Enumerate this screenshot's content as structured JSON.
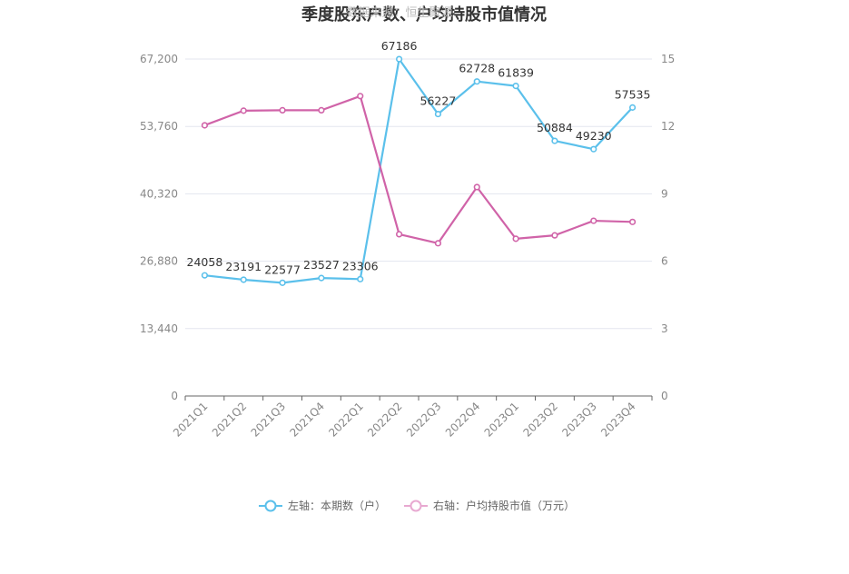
{
  "chart_data": {
    "type": "line",
    "title": "季度股东户数、户均持股市值情况",
    "watermark": "数据来源：恒生聚源",
    "categories": [
      "2021Q1",
      "2021Q2",
      "2021Q3",
      "2021Q4",
      "2022Q1",
      "2022Q2",
      "2022Q3",
      "2022Q4",
      "2023Q1",
      "2023Q2",
      "2023Q3",
      "2023Q4"
    ],
    "left_axis": {
      "ylim": [
        0,
        67200
      ],
      "ticks": [
        "0",
        "13,440",
        "26,880",
        "40,320",
        "53,760",
        "67,200"
      ],
      "tick_values": [
        0,
        13440,
        26880,
        40320,
        53760,
        67200
      ]
    },
    "right_axis": {
      "ylim": [
        0,
        15
      ],
      "ticks": [
        "0",
        "3",
        "6",
        "9",
        "12",
        "15"
      ],
      "tick_values": [
        0,
        3,
        6,
        9,
        12,
        15
      ]
    },
    "series": [
      {
        "name": "左轴：本期数（户）",
        "axis": "left",
        "color": "#5bc0eb",
        "values": [
          24058,
          23191,
          22577,
          23527,
          23306,
          67186,
          56227,
          62728,
          61839,
          50884,
          49230,
          57535
        ],
        "labels": [
          "24058",
          "23191",
          "22577",
          "23527",
          "23306",
          "67186",
          "56227",
          "62728",
          "61839",
          "50884",
          "49230",
          "57535"
        ]
      },
      {
        "name": "右轴：户均持股市值（万元）",
        "axis": "right",
        "color": "#d063a8",
        "values": [
          12.05,
          12.7,
          12.72,
          12.72,
          13.35,
          7.2,
          6.8,
          9.3,
          7.0,
          7.15,
          7.8,
          7.75
        ]
      }
    ],
    "grid": true,
    "legend_position": "bottom"
  }
}
